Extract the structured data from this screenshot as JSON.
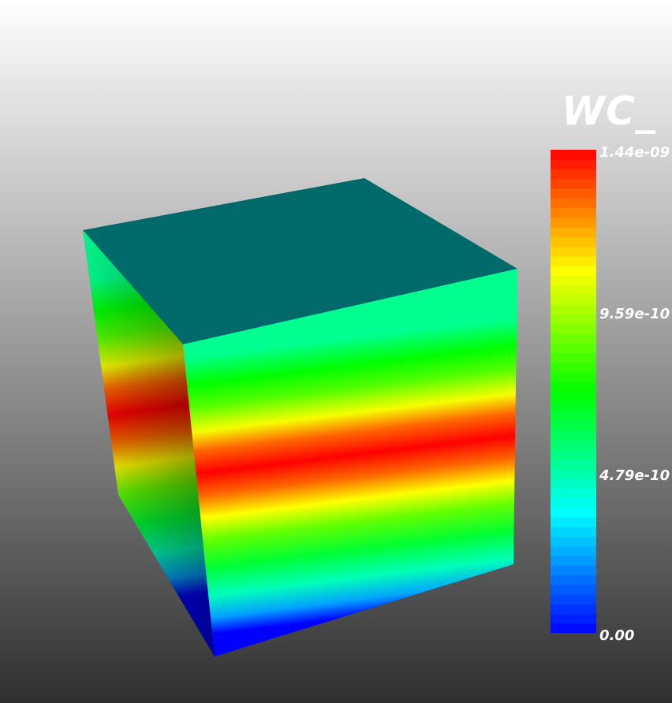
{
  "scalar_bar": {
    "title": "WC_",
    "tick_labels": [
      "1.44e-09",
      "9.59e-10",
      "4.79e-10",
      "0.00"
    ],
    "range": [
      0.0,
      1.44e-09
    ],
    "colormap": [
      "#0000ff",
      "#00ffff",
      "#00ff00",
      "#ffff00",
      "#ff0000"
    ],
    "bands": 50
  },
  "cube": {
    "top_face_color": "#006a6a",
    "shading": "banded scalar field along vertical axis"
  },
  "background": {
    "top": "#ffffff",
    "bottom": "#2f2f2f"
  }
}
